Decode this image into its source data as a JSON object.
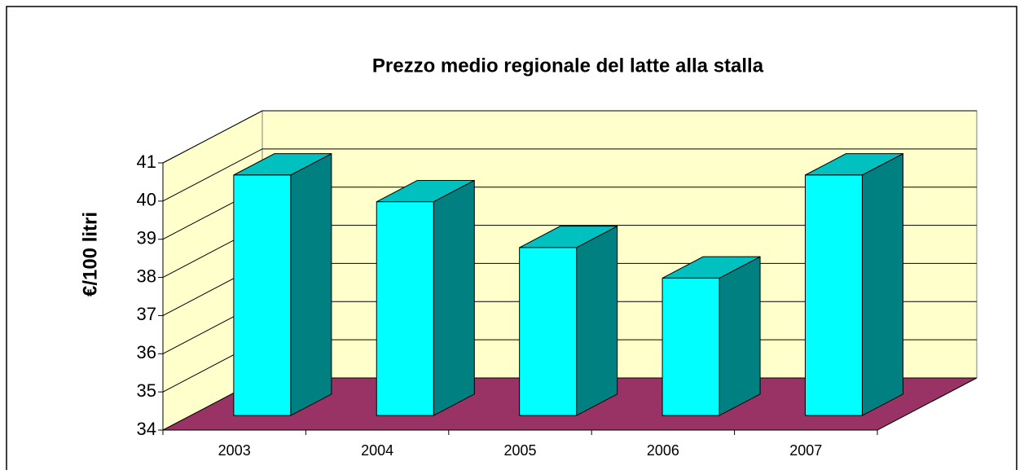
{
  "chart_data": {
    "type": "bar3d",
    "title": "Prezzo medio regionale del latte alla stalla",
    "y_label": "€/100 litri",
    "categories": [
      "2003",
      "2004",
      "2005",
      "2006",
      "2007"
    ],
    "values": [
      40.3,
      39.6,
      38.4,
      37.6,
      40.3
    ],
    "color": "#00ffff",
    "ylim": [
      34,
      41
    ],
    "yticks": [
      34,
      35,
      36,
      37,
      38,
      39,
      40,
      41
    ],
    "grid": true
  }
}
